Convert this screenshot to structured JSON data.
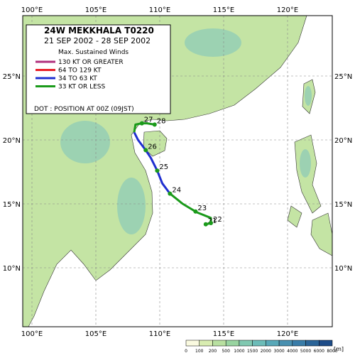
{
  "header": {
    "title": "24W  MEKKHALA  T0220",
    "period": "21 SEP 2002 - 28 SEP 2002"
  },
  "legend": {
    "heading": "Max. Sustained Winds",
    "items": [
      {
        "label": "130 KT OR GREATER",
        "color": "#b0307c"
      },
      {
        "label": "64 TO 129 KT",
        "color": "#e8202a"
      },
      {
        "label": "34 TO 63 KT",
        "color": "#1f2fd0"
      },
      {
        "label": "33 KT OR LESS",
        "color": "#1a9a1a"
      }
    ],
    "dot_note": "DOT : POSITION AT 00Z (09JST)"
  },
  "axes": {
    "lon_ticks": [
      {
        "value": 100,
        "label": "100°E"
      },
      {
        "value": 105,
        "label": "105°E"
      },
      {
        "value": 110,
        "label": "110°E"
      },
      {
        "value": 115,
        "label": "115°E"
      },
      {
        "value": 120,
        "label": "120°E"
      }
    ],
    "lat_ticks": [
      {
        "value": 25,
        "label": "25°N"
      },
      {
        "value": 20,
        "label": "20°N"
      },
      {
        "value": 15,
        "label": "15°N"
      },
      {
        "value": 10,
        "label": "10°N"
      }
    ]
  },
  "track": {
    "segments": [
      {
        "color": "#1a9a1a",
        "points": [
          [
            113.6,
            13.4
          ],
          [
            114.0,
            13.5
          ],
          [
            114.0,
            13.9
          ],
          [
            113.0,
            14.3
          ],
          [
            112.8,
            14.4
          ],
          [
            111.8,
            15.0
          ],
          [
            110.8,
            15.8
          ]
        ]
      },
      {
        "color": "#1f2fd0",
        "points": [
          [
            110.8,
            15.8
          ],
          [
            110.2,
            16.6
          ],
          [
            109.8,
            17.6
          ],
          [
            109.3,
            18.6
          ],
          [
            108.9,
            19.2
          ],
          [
            108.3,
            20.0
          ],
          [
            108.0,
            20.6
          ]
        ]
      },
      {
        "color": "#1a9a1a",
        "points": [
          [
            108.0,
            20.6
          ],
          [
            108.1,
            21.2
          ],
          [
            108.6,
            21.3
          ],
          [
            109.0,
            21.3
          ],
          [
            109.6,
            21.2
          ]
        ]
      }
    ],
    "positions": [
      {
        "label": "21",
        "lon": 113.6,
        "lat": 13.4
      },
      {
        "label": "22",
        "lon": 114.0,
        "lat": 13.5
      },
      {
        "label": "23",
        "lon": 112.8,
        "lat": 14.4
      },
      {
        "label": "24",
        "lon": 110.8,
        "lat": 15.8
      },
      {
        "label": "25",
        "lon": 109.8,
        "lat": 17.6
      },
      {
        "label": "26",
        "lon": 108.9,
        "lat": 19.2
      },
      {
        "label": "27",
        "lon": 108.6,
        "lat": 21.3
      },
      {
        "label": "28",
        "lon": 109.6,
        "lat": 21.2
      }
    ]
  },
  "colorbar": {
    "unit": "[m]",
    "ticks": [
      "0",
      "100",
      "200",
      "500",
      "1000",
      "1500",
      "2000",
      "3000",
      "4000",
      "5000",
      "6000",
      "8000"
    ],
    "colors": [
      "#fafae0",
      "#d8ecb0",
      "#b8e0a0",
      "#98d4a0",
      "#80c8b0",
      "#6cbcb8",
      "#58a8b8",
      "#4890b0",
      "#387ca8",
      "#2a6498",
      "#1e4c88"
    ]
  }
}
